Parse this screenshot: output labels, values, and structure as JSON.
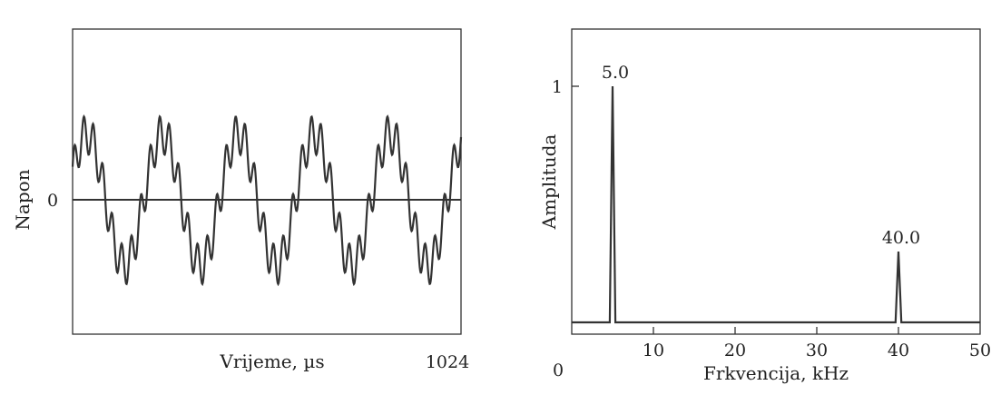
{
  "chart_data": [
    {
      "type": "line",
      "title": "",
      "xlabel": "Vrijeme, µs",
      "ylabel": "Napon",
      "x_tick_labels": [
        "1024"
      ],
      "y_tick_labels": [
        "0"
      ],
      "xlim": [
        0,
        1024
      ],
      "series": [
        {
          "components": [
            {
              "frequency_khz": 5.0,
              "amplitude": 1.0
            },
            {
              "frequency_khz": 40.0,
              "amplitude": 0.3
            }
          ]
        }
      ],
      "zero_line": true,
      "grid": false
    },
    {
      "type": "line",
      "title": "",
      "xlabel": "Frkvencija, kHz",
      "ylabel": "Amplituda",
      "xlim": [
        0,
        50
      ],
      "ylim": [
        0,
        1.1
      ],
      "x_ticks": [
        0,
        10,
        20,
        30,
        40,
        50
      ],
      "x_tick_labels": [
        "0",
        "10",
        "20",
        "30",
        "40",
        "50"
      ],
      "y_ticks": [
        1
      ],
      "y_tick_labels": [
        "1"
      ],
      "series": [
        {
          "peaks": [
            {
              "x": 5.0,
              "y": 1.0,
              "label": "5.0"
            },
            {
              "x": 40.0,
              "y": 0.3,
              "label": "40.0"
            }
          ]
        }
      ],
      "grid": false
    }
  ]
}
